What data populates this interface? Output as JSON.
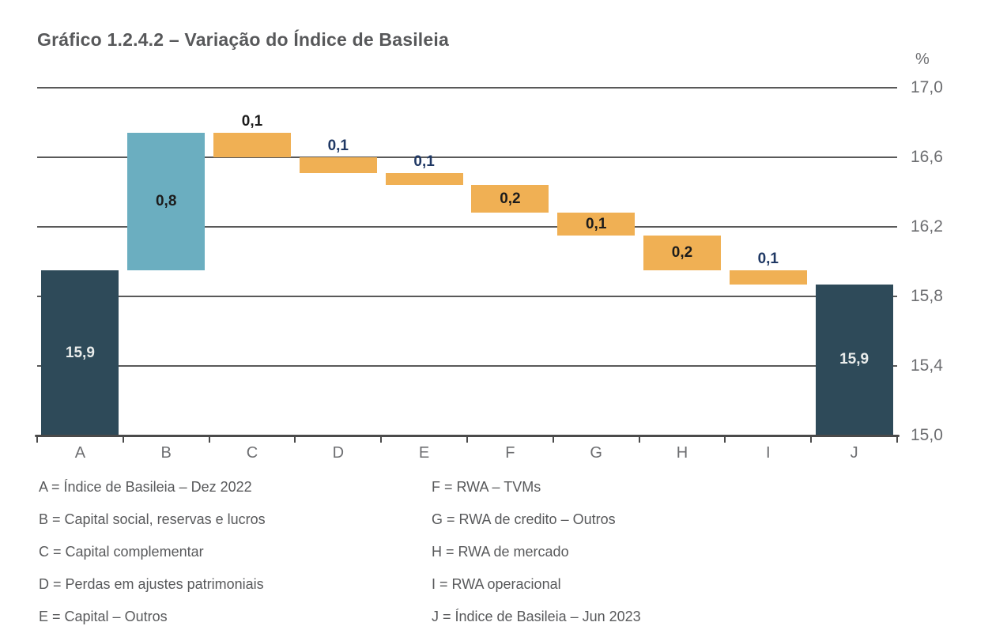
{
  "title": "Gráfico 1.2.4.2 – Variação do Índice de Basileia",
  "colors": {
    "total": "#2e4a59",
    "increase": "#6baec0",
    "decrease": "#f0b054",
    "label": {
      "light": "#e9eceb",
      "dark": "#1c1c1c",
      "navy": "#1f3864"
    },
    "grid": "#595959",
    "axis": "#4a4a4a",
    "axis_text": "#6d6e71",
    "title_text": "#57585a",
    "legend_text": "#58595b"
  },
  "chart_data": {
    "type": "bar",
    "subtype": "waterfall",
    "title": "Gráfico 1.2.4.2 – Variação do Índice de Basileia",
    "unit_label": "%",
    "ylim": [
      15.0,
      17.0
    ],
    "grid": true,
    "legend_position": "below",
    "categories": [
      "A",
      "B",
      "C",
      "D",
      "E",
      "F",
      "G",
      "H",
      "I",
      "J"
    ],
    "yticks": [
      {
        "value": 17.0,
        "label": "17,0"
      },
      {
        "value": 16.6,
        "label": "16,6"
      },
      {
        "value": 16.2,
        "label": "16,2"
      },
      {
        "value": 15.8,
        "label": "15,8"
      },
      {
        "value": 15.4,
        "label": "15,4"
      },
      {
        "value": 15.0,
        "label": "15,0"
      }
    ],
    "bars": [
      {
        "category": "A",
        "kind": "total",
        "start": 15.0,
        "end": 15.95,
        "label": "15,9",
        "label_position": "inside",
        "label_color": "light"
      },
      {
        "category": "B",
        "kind": "increase",
        "start": 15.95,
        "end": 16.74,
        "label": "0,8",
        "label_position": "inside",
        "label_color": "dark"
      },
      {
        "category": "C",
        "kind": "decrease",
        "start": 16.74,
        "end": 16.6,
        "label": "0,1",
        "label_position": "above",
        "label_color": "dark"
      },
      {
        "category": "D",
        "kind": "decrease",
        "start": 16.6,
        "end": 16.51,
        "label": "0,1",
        "label_position": "above",
        "label_color": "navy"
      },
      {
        "category": "E",
        "kind": "decrease",
        "start": 16.51,
        "end": 16.44,
        "label": "0,1",
        "label_position": "above",
        "label_color": "navy"
      },
      {
        "category": "F",
        "kind": "decrease",
        "start": 16.44,
        "end": 16.28,
        "label": "0,2",
        "label_position": "inside",
        "label_color": "dark"
      },
      {
        "category": "G",
        "kind": "decrease",
        "start": 16.28,
        "end": 16.15,
        "label": "0,1",
        "label_position": "inside",
        "label_color": "dark"
      },
      {
        "category": "H",
        "kind": "decrease",
        "start": 16.15,
        "end": 15.95,
        "label": "0,2",
        "label_position": "inside",
        "label_color": "dark"
      },
      {
        "category": "I",
        "kind": "decrease",
        "start": 15.95,
        "end": 15.87,
        "label": "0,1",
        "label_position": "above",
        "label_color": "navy"
      },
      {
        "category": "J",
        "kind": "total",
        "start": 15.0,
        "end": 15.87,
        "label": "15,9",
        "label_position": "inside",
        "label_color": "light"
      }
    ]
  },
  "legend": {
    "left": [
      "A = Índice de Basileia – Dez 2022",
      "B = Capital social, reservas e lucros",
      "C = Capital complementar",
      "D = Perdas em ajustes patrimoniais",
      "E = Capital – Outros"
    ],
    "right": [
      "F = RWA – TVMs",
      "G = RWA de credito – Outros",
      "H = RWA de mercado",
      "I = RWA operacional",
      "J = Índice de Basileia – Jun 2023"
    ]
  }
}
